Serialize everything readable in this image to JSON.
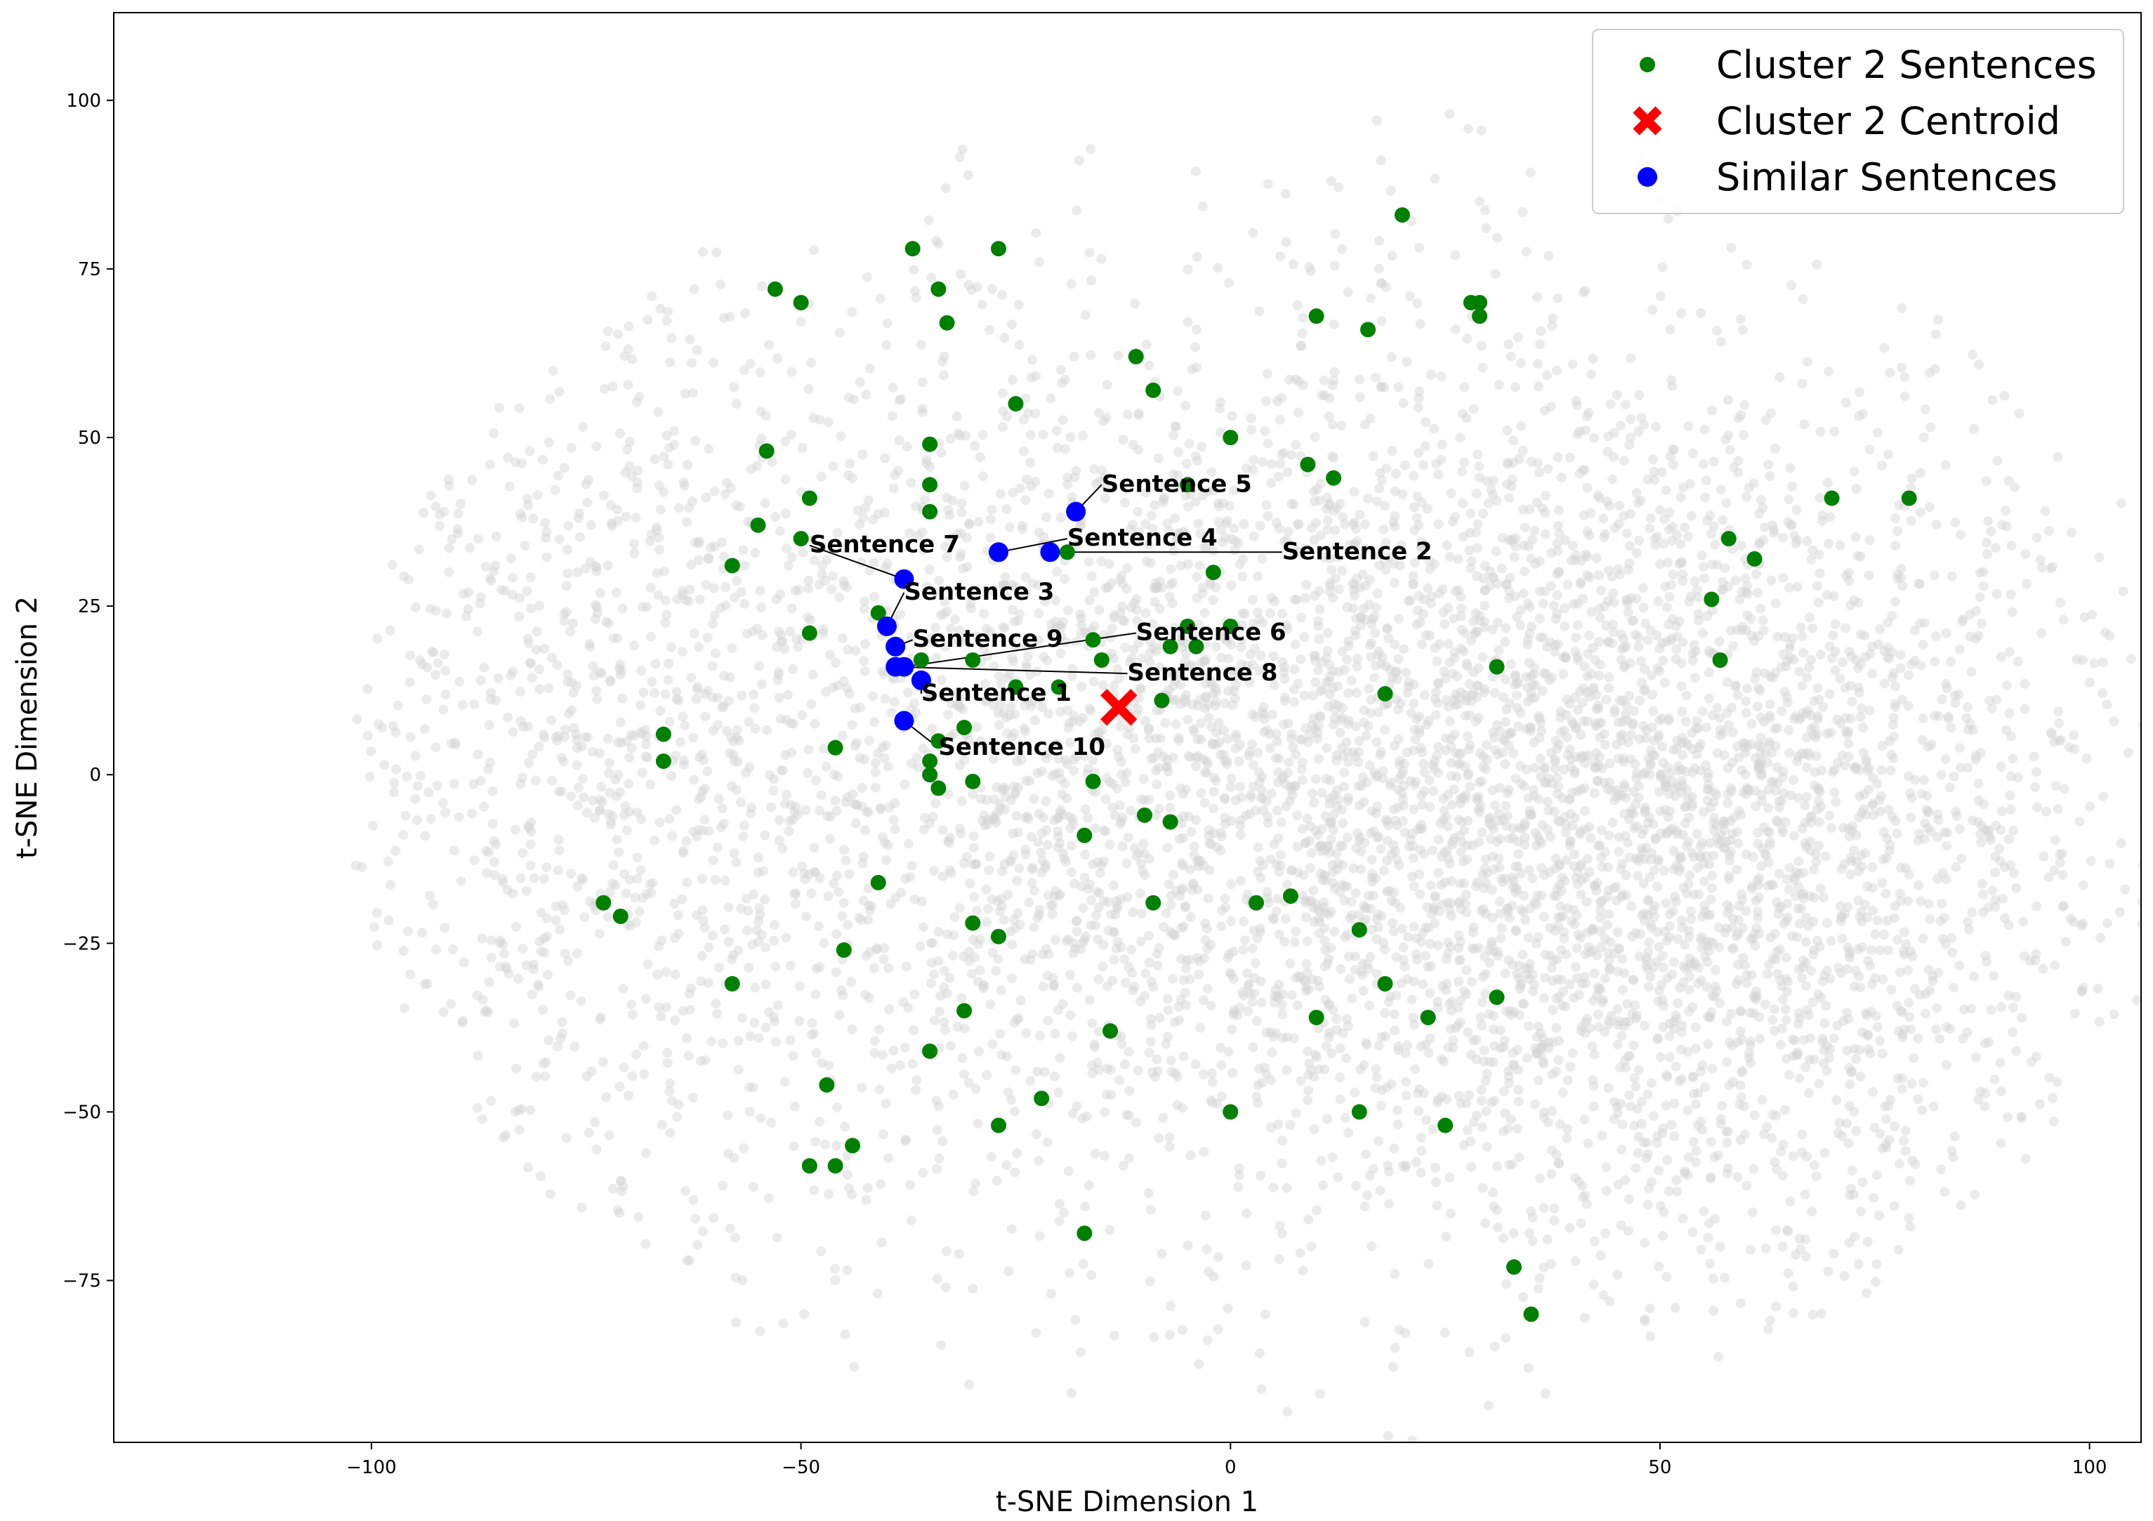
{
  "chart_data": {
    "type": "scatter",
    "xlabel": "t-SNE Dimension 1",
    "ylabel": "t-SNE Dimension 2",
    "xlim": [
      -130,
      106
    ],
    "ylim": [
      -99,
      113
    ],
    "xticks": [
      -100,
      -50,
      0,
      50,
      100
    ],
    "yticks": [
      -75,
      -50,
      -25,
      0,
      25,
      50,
      75,
      100
    ],
    "xtick_labels": [
      "−100",
      "−50",
      "0",
      "50",
      "100"
    ],
    "ytick_labels": [
      "−75",
      "−50",
      "−25",
      "0",
      "25",
      "50",
      "75",
      "100"
    ],
    "grid": false,
    "legend_position": "top-right",
    "legend": [
      {
        "label": "Cluster 2 Sentences",
        "color": "#008000",
        "marker": "circle"
      },
      {
        "label": "Cluster 2 Centroid",
        "color": "#ff0000",
        "marker": "x"
      },
      {
        "label": "Similar Sentences",
        "color": "#0000ff",
        "marker": "circle"
      }
    ],
    "background_color": "#d3d3d3",
    "series": [
      {
        "name": "Cluster 2 Sentences",
        "color": "#008000",
        "points": [
          [
            -37,
            78
          ],
          [
            -27,
            78
          ],
          [
            -34,
            72
          ],
          [
            -53,
            72
          ],
          [
            -50,
            70
          ],
          [
            -33,
            67
          ],
          [
            -11,
            62
          ],
          [
            -9,
            57
          ],
          [
            -25,
            55
          ],
          [
            10,
            68
          ],
          [
            16,
            66
          ],
          [
            20,
            83
          ],
          [
            28,
            70
          ],
          [
            29,
            70
          ],
          [
            29,
            68
          ],
          [
            -54,
            48
          ],
          [
            -35,
            49
          ],
          [
            0,
            50
          ],
          [
            -35,
            43
          ],
          [
            -35,
            39
          ],
          [
            -49,
            41
          ],
          [
            -55,
            37
          ],
          [
            -50,
            35
          ],
          [
            -58,
            31
          ],
          [
            -5,
            43
          ],
          [
            9,
            46
          ],
          [
            12,
            44
          ],
          [
            -2,
            30
          ],
          [
            -19,
            33
          ],
          [
            -41,
            24
          ],
          [
            -49,
            21
          ],
          [
            -36,
            17
          ],
          [
            -30,
            17
          ],
          [
            -16,
            20
          ],
          [
            -15,
            17
          ],
          [
            -7,
            19
          ],
          [
            -4,
            19
          ],
          [
            -5,
            22
          ],
          [
            0,
            22
          ],
          [
            -20,
            13
          ],
          [
            -25,
            13
          ],
          [
            -8,
            11
          ],
          [
            18,
            12
          ],
          [
            31,
            16
          ],
          [
            56,
            26
          ],
          [
            58,
            35
          ],
          [
            61,
            32
          ],
          [
            57,
            17
          ],
          [
            70,
            41
          ],
          [
            79,
            41
          ],
          [
            -66,
            6
          ],
          [
            -66,
            2
          ],
          [
            -46,
            4
          ],
          [
            -34,
            5
          ],
          [
            -31,
            7
          ],
          [
            -35,
            2
          ],
          [
            -35,
            0
          ],
          [
            -34,
            -2
          ],
          [
            -30,
            -1
          ],
          [
            -16,
            -1
          ],
          [
            -10,
            -6
          ],
          [
            -7,
            -7
          ],
          [
            -17,
            -9
          ],
          [
            -41,
            -16
          ],
          [
            -9,
            -19
          ],
          [
            3,
            -19
          ],
          [
            7,
            -18
          ],
          [
            15,
            -23
          ],
          [
            -73,
            -19
          ],
          [
            -71,
            -21
          ],
          [
            -45,
            -26
          ],
          [
            -30,
            -22
          ],
          [
            -27,
            -24
          ],
          [
            -58,
            -31
          ],
          [
            -31,
            -35
          ],
          [
            -14,
            -38
          ],
          [
            10,
            -36
          ],
          [
            18,
            -31
          ],
          [
            23,
            -36
          ],
          [
            31,
            -33
          ],
          [
            -35,
            -41
          ],
          [
            -47,
            -46
          ],
          [
            -22,
            -48
          ],
          [
            0,
            -50
          ],
          [
            15,
            -50
          ],
          [
            -27,
            -52
          ],
          [
            25,
            -52
          ],
          [
            -44,
            -55
          ],
          [
            -49,
            -58
          ],
          [
            -46,
            -58
          ],
          [
            -17,
            -68
          ],
          [
            33,
            -73
          ],
          [
            35,
            -80
          ]
        ]
      },
      {
        "name": "Cluster 2 Centroid",
        "color": "#ff0000",
        "points": [
          [
            -13,
            10
          ]
        ]
      },
      {
        "name": "Similar Sentences",
        "color": "#0000ff",
        "points": [
          {
            "x": -36,
            "y": 14,
            "label": "Sentence 1",
            "lx": -36,
            "ly": 12
          },
          {
            "x": -21,
            "y": 33,
            "label": "Sentence 2",
            "lx": 6,
            "ly": 33
          },
          {
            "x": -40,
            "y": 22,
            "label": "Sentence 3",
            "lx": -38,
            "ly": 27
          },
          {
            "x": -27,
            "y": 33,
            "label": "Sentence 4",
            "lx": -19,
            "ly": 35
          },
          {
            "x": -18,
            "y": 39,
            "label": "Sentence 5",
            "lx": -15,
            "ly": 43
          },
          {
            "x": -38,
            "y": 16,
            "label": "Sentence 6",
            "lx": -11,
            "ly": 21
          },
          {
            "x": -38,
            "y": 29,
            "label": "Sentence 7",
            "lx": -49,
            "ly": 34
          },
          {
            "x": -39,
            "y": 16,
            "label": "Sentence 8",
            "lx": -12,
            "ly": 15
          },
          {
            "x": -39,
            "y": 19,
            "label": "Sentence 9",
            "lx": -37,
            "ly": 20
          },
          {
            "x": -38,
            "y": 8,
            "label": "Sentence 10",
            "lx": -34,
            "ly": 4
          }
        ]
      }
    ]
  }
}
